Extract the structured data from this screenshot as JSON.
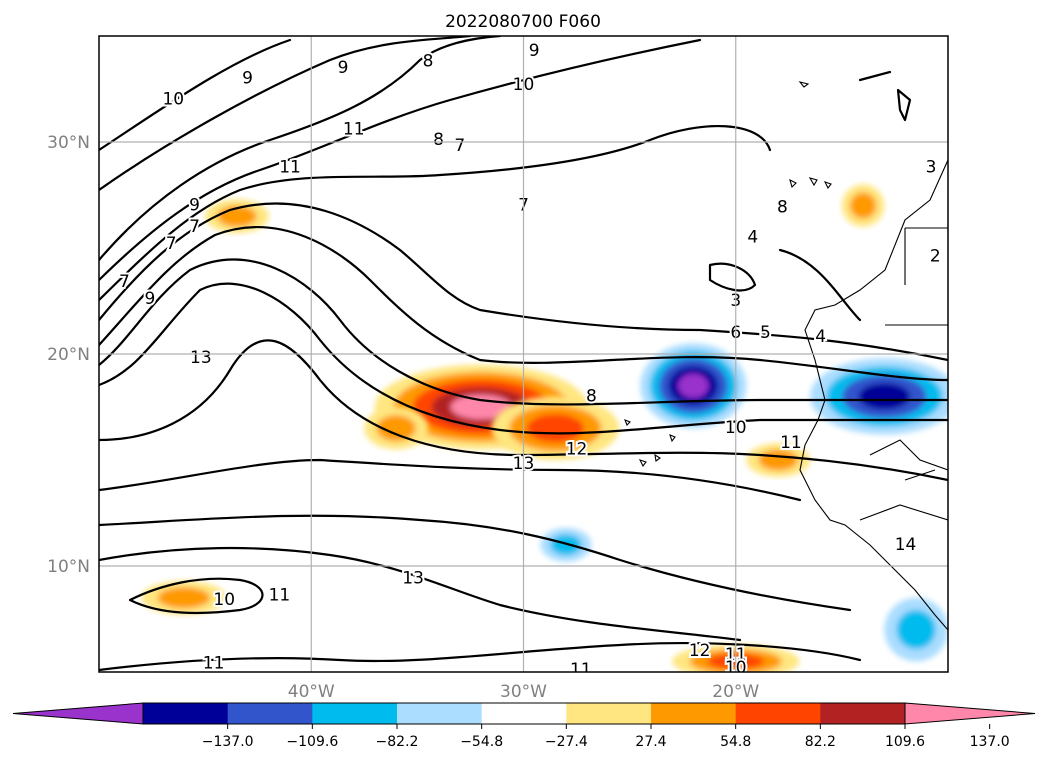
{
  "chart_data": {
    "type": "heatmap",
    "title": "2022080700 F060",
    "map": {
      "lon_range": [
        -50,
        -10
      ],
      "lat_range": [
        5,
        35
      ],
      "lon_ticks": [
        {
          "value": -40,
          "label": "40°W"
        },
        {
          "value": -30,
          "label": "30°W"
        },
        {
          "value": -20,
          "label": "20°W"
        }
      ],
      "lat_ticks": [
        {
          "value": 30,
          "label": "30°N"
        },
        {
          "value": 20,
          "label": "20°N"
        },
        {
          "value": 10,
          "label": "10°N"
        }
      ],
      "grid": true
    },
    "colorbar": {
      "orientation": "horizontal",
      "extend": "both",
      "levels": [
        -164.4,
        -137.0,
        -109.6,
        -82.2,
        -54.8,
        -27.4,
        27.4,
        54.8,
        82.2,
        109.6,
        137.0,
        164.4
      ],
      "tick_labels": [
        "−137.0",
        "−109.6",
        "−82.2",
        "−54.8",
        "−27.4",
        "27.4",
        "54.8",
        "82.2",
        "109.6",
        "137.0"
      ],
      "tick_values": [
        -137.0,
        -109.6,
        -82.2,
        -54.8,
        -27.4,
        27.4,
        54.8,
        82.2,
        109.6,
        137.0
      ],
      "colors": [
        "#9933cc",
        "#000099",
        "#3355cc",
        "#00bbee",
        "#aaddff",
        "#ffffff",
        "#ffe680",
        "#ff9900",
        "#ff4400",
        "#b22222",
        "#ff88aa"
      ]
    },
    "fields": [
      {
        "name": "positive anomaly core",
        "lon": -32,
        "lat": 17.5,
        "rx": 5,
        "ry": 2,
        "value": 140
      },
      {
        "name": "positive anomaly east",
        "lon": -28.5,
        "lat": 16.5,
        "rx": 3,
        "ry": 1.5,
        "value": 90
      },
      {
        "name": "positive anomaly west",
        "lon": -36,
        "lat": 16.5,
        "rx": 1.5,
        "ry": 1,
        "value": 80
      },
      {
        "name": "negative anomaly west africa coast",
        "lon": -22,
        "lat": 18.5,
        "rx": 2.5,
        "ry": 2,
        "value": -140
      },
      {
        "name": "negative anomaly east",
        "lon": -13,
        "lat": 18,
        "rx": 3.5,
        "ry": 1.8,
        "value": -110
      },
      {
        "name": "negative anomaly south",
        "lon": -28,
        "lat": 11,
        "rx": 1.2,
        "ry": 0.8,
        "value": -75
      },
      {
        "name": "negative anomaly far south",
        "lon": -11.5,
        "lat": 7,
        "rx": 1.5,
        "ry": 1.5,
        "value": -80
      },
      {
        "name": "positive anomaly north west",
        "lon": -43.5,
        "lat": 26.5,
        "rx": 1.5,
        "ry": 0.8,
        "value": 80
      },
      {
        "name": "positive anomaly south west",
        "lon": -46,
        "lat": 8.5,
        "rx": 2,
        "ry": 0.8,
        "value": 80
      },
      {
        "name": "positive anomaly south central",
        "lon": -20,
        "lat": 5.5,
        "rx": 3,
        "ry": 0.8,
        "value": 100
      },
      {
        "name": "positive anomaly canaries",
        "lon": -14,
        "lat": 27,
        "rx": 1,
        "ry": 1,
        "value": 70
      },
      {
        "name": "positive anomaly west africa",
        "lon": -18,
        "lat": 15,
        "rx": 1.5,
        "ry": 0.8,
        "value": 80
      }
    ],
    "contour_labels": [
      {
        "text": "9",
        "lon": -43,
        "lat": 33
      },
      {
        "text": "10",
        "lon": -46.5,
        "lat": 32
      },
      {
        "text": "9",
        "lon": -38.5,
        "lat": 33.5
      },
      {
        "text": "8",
        "lon": -34.5,
        "lat": 33.8
      },
      {
        "text": "9",
        "lon": -29.5,
        "lat": 34.3
      },
      {
        "text": "10",
        "lon": -30,
        "lat": 32.7
      },
      {
        "text": "11",
        "lon": -41,
        "lat": 28.8
      },
      {
        "text": "11",
        "lon": -38,
        "lat": 30.6
      },
      {
        "text": "8",
        "lon": -34,
        "lat": 30.1
      },
      {
        "text": "7",
        "lon": -33,
        "lat": 29.8
      },
      {
        "text": "7",
        "lon": -30,
        "lat": 27
      },
      {
        "text": "9",
        "lon": -45.5,
        "lat": 27
      },
      {
        "text": "7",
        "lon": -45.5,
        "lat": 26
      },
      {
        "text": "7",
        "lon": -46.6,
        "lat": 25.2
      },
      {
        "text": "9",
        "lon": -47.6,
        "lat": 22.6
      },
      {
        "text": "7",
        "lon": -48.8,
        "lat": 23.4
      },
      {
        "text": "13",
        "lon": -45.2,
        "lat": 19.8
      },
      {
        "text": "3",
        "lon": -10.8,
        "lat": 28.8
      },
      {
        "text": "4",
        "lon": -19.2,
        "lat": 25.5
      },
      {
        "text": "8",
        "lon": -17.8,
        "lat": 26.9
      },
      {
        "text": "2",
        "lon": -10.6,
        "lat": 24.6
      },
      {
        "text": "3",
        "lon": -20,
        "lat": 22.5
      },
      {
        "text": "6",
        "lon": -20,
        "lat": 21
      },
      {
        "text": "5",
        "lon": -18.6,
        "lat": 21
      },
      {
        "text": "4",
        "lon": -16,
        "lat": 20.8
      },
      {
        "text": "8",
        "lon": -26.8,
        "lat": 18
      },
      {
        "text": "10",
        "lon": -20,
        "lat": 16.5
      },
      {
        "text": "11",
        "lon": -17.4,
        "lat": 15.8
      },
      {
        "text": "12",
        "lon": -27.5,
        "lat": 15.5
      },
      {
        "text": "13",
        "lon": -30,
        "lat": 14.8
      },
      {
        "text": "14",
        "lon": -12,
        "lat": 11
      },
      {
        "text": "13",
        "lon": -35.2,
        "lat": 9.4
      },
      {
        "text": "10",
        "lon": -44.1,
        "lat": 8.4
      },
      {
        "text": "11",
        "lon": -41.5,
        "lat": 8.6
      },
      {
        "text": "11",
        "lon": -44.6,
        "lat": 5.4
      },
      {
        "text": "12",
        "lon": -21.7,
        "lat": 6
      },
      {
        "text": "11",
        "lon": -20,
        "lat": 5.8
      },
      {
        "text": "10",
        "lon": -20,
        "lat": 5.2
      },
      {
        "text": "11",
        "lon": -27.3,
        "lat": 5.1
      }
    ]
  }
}
